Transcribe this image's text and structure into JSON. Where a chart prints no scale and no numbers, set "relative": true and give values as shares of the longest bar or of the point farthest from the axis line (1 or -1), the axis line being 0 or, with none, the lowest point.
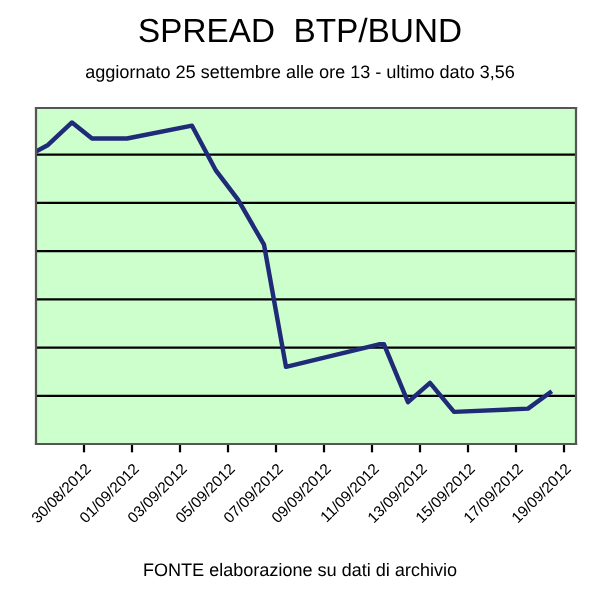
{
  "chart_data": {
    "type": "line",
    "title": "SPREAD  BTP/BUND",
    "subtitle": "aggiornato 25 settembre alle ore 13 - ultimo dato 3,56",
    "annotations": [
      "FONTE elaborazione su dati di archivio"
    ],
    "relative": true,
    "x": [
      "2012-08-28T00:00",
      "2012-08-28T12:00",
      "2012-08-29T12:00",
      "2012-08-30T08:00",
      "2012-08-31T19:00",
      "2012-09-03T12:00",
      "2012-09-04T12:00",
      "2012-09-05T10:00",
      "2012-09-06T12:00",
      "2012-09-07T10:00",
      "2012-09-11T07:00",
      "2012-09-11T12:00",
      "2012-09-12T12:00",
      "2012-09-13T10:00",
      "2012-09-14T10:00",
      "2012-09-17T12:00",
      "2012-09-18T10:00"
    ],
    "series": [
      {
        "color": "#1f2a78",
        "values": [
          0.91,
          0.93,
          1,
          0.95,
          0.95,
          0.99,
          0.85,
          0.76,
          0.62,
          0.24,
          0.31,
          0.31,
          0.13,
          0.19,
          0.1,
          0.11,
          0.16
        ]
      }
    ],
    "xlim": [
      "2012-08-28",
      "2012-09-19T12:00"
    ],
    "xticks": [
      {
        "value": "2012-08-30",
        "label": "30/08/2012"
      },
      {
        "value": "2012-09-01",
        "label": "01/09/2012"
      },
      {
        "value": "2012-09-03",
        "label": "03/09/2012"
      },
      {
        "value": "2012-09-05",
        "label": "05/09/2012"
      },
      {
        "value": "2012-09-07",
        "label": "07/09/2012"
      },
      {
        "value": "2012-09-09",
        "label": "09/09/2012"
      },
      {
        "value": "2012-09-11",
        "label": "11/09/2012"
      },
      {
        "value": "2012-09-13",
        "label": "13/09/2012"
      },
      {
        "value": "2012-09-15",
        "label": "15/09/2012"
      },
      {
        "value": "2012-09-17",
        "label": "17/09/2012"
      },
      {
        "value": "2012-09-19",
        "label": "19/09/2012"
      }
    ],
    "grid": "y",
    "tick_labels": "x",
    "marker": "none",
    "line_style": "solid"
  }
}
